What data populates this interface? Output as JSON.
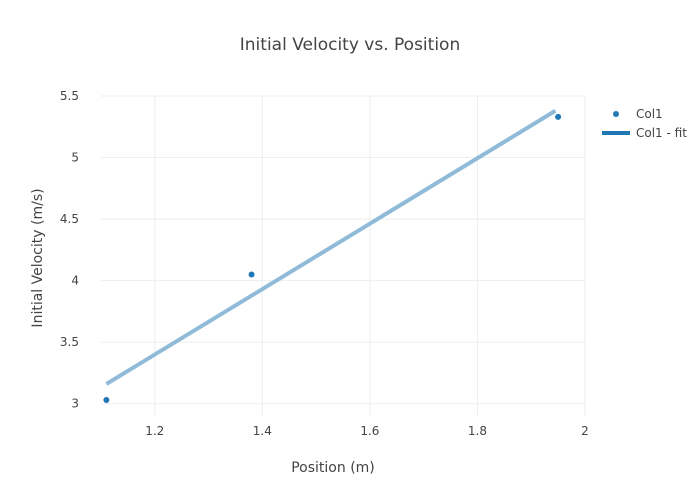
{
  "chart_data": {
    "type": "scatter",
    "title": "Initial Velocity vs. Position",
    "xlabel": "Position (m)",
    "ylabel": "Initial Velocity (m/s)",
    "xlim": [
      1.1,
      2.0
    ],
    "ylim": [
      2.9,
      5.5
    ],
    "x_ticks": [
      1.2,
      1.4,
      1.6,
      1.8,
      2
    ],
    "x_tick_labels": [
      "1.2",
      "1.4",
      "1.6",
      "1.8",
      "2"
    ],
    "y_ticks": [
      3,
      3.5,
      4,
      4.5,
      5,
      5.5
    ],
    "y_tick_labels": [
      "3",
      "3.5",
      "4",
      "4.5",
      "5",
      "5.5"
    ],
    "grid": true,
    "legend_position": "top-right",
    "series": [
      {
        "name": "Col1",
        "mode": "markers",
        "color": "#1f77b4",
        "x": [
          1.11,
          1.38,
          1.95
        ],
        "y": [
          3.03,
          4.05,
          5.33
        ]
      },
      {
        "name": "Col1 - fit",
        "mode": "line",
        "color": "#8fbbd9",
        "x": [
          1.11,
          1.945
        ],
        "y": [
          3.16,
          5.38
        ]
      }
    ]
  }
}
